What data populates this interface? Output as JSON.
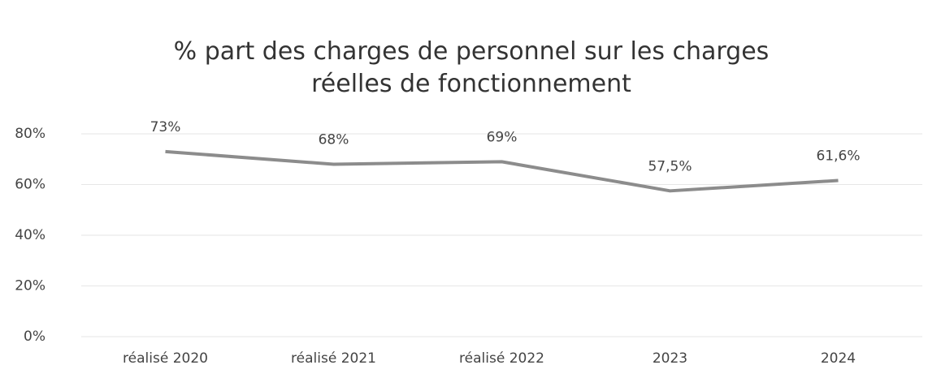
{
  "chart_data": {
    "type": "line",
    "title": "% part des charges de personnel sur les charges réelles de fonctionnement",
    "categories": [
      "réalisé 2020",
      "réalisé 2021",
      "réalisé 2022",
      "2023",
      "2024"
    ],
    "series": [
      {
        "color": "#8c8c8c",
        "values": [
          73,
          68,
          69,
          57.5,
          61.6
        ],
        "value_labels": [
          "73%",
          "68%",
          "69%",
          "57,5%",
          "61,6%"
        ]
      }
    ],
    "ylim": [
      0,
      80
    ],
    "yticks": [
      {
        "value": 0,
        "label": "0%"
      },
      {
        "value": 20,
        "label": "20%"
      },
      {
        "value": 40,
        "label": "40%"
      },
      {
        "value": 60,
        "label": "60%"
      },
      {
        "value": 80,
        "label": "80%"
      }
    ],
    "grid": true
  }
}
